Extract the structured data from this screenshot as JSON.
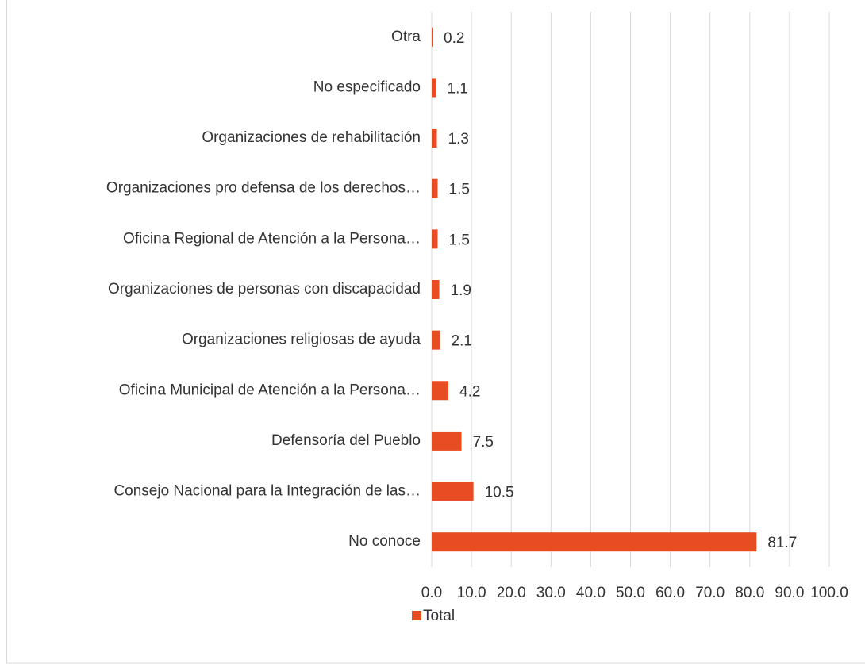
{
  "chart_data": {
    "type": "barh",
    "categories": [
      "Otra",
      "No especificado",
      "Organizaciones de rehabilitación",
      "Organizaciones pro defensa de los derechos…",
      "Oficina Regional de Atención a la Persona…",
      "Organizaciones de personas con discapacidad",
      "Organizaciones religiosas de ayuda",
      "Oficina Municipal de Atención a la Persona…",
      "Defensoría del Pueblo",
      "Consejo Nacional para la Integración de las…",
      "No conoce"
    ],
    "series": [
      {
        "name": "Total",
        "color": "#e84c22",
        "values": [
          0.2,
          1.1,
          1.3,
          1.5,
          1.5,
          1.9,
          2.1,
          4.2,
          7.5,
          10.5,
          81.7
        ]
      }
    ],
    "xlim": [
      0,
      100
    ],
    "xticks": [
      {
        "value": 0,
        "label": "0.0"
      },
      {
        "value": 10,
        "label": "10.0"
      },
      {
        "value": 20,
        "label": "20.0"
      },
      {
        "value": 30,
        "label": "30.0"
      },
      {
        "value": 40,
        "label": "40.0"
      },
      {
        "value": 50,
        "label": "50.0"
      },
      {
        "value": 60,
        "label": "60.0"
      },
      {
        "value": 70,
        "label": "70.0"
      },
      {
        "value": 80,
        "label": "80.0"
      },
      {
        "value": 90,
        "label": "90.0"
      },
      {
        "value": 100,
        "label": "100.0"
      }
    ],
    "grid": true,
    "legend": "bottom"
  }
}
